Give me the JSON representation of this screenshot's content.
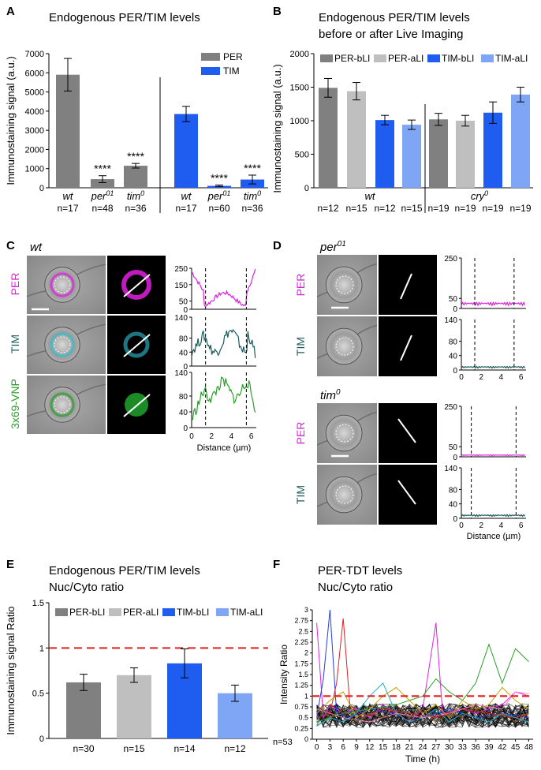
{
  "panels": {
    "A": {
      "label": "A",
      "title": "Endogenous PER/TIM levels"
    },
    "B": {
      "label": "B",
      "title_line1": "Endogenous PER/TIM levels",
      "title_line2": "before or after Live Imaging"
    },
    "C": {
      "label": "C",
      "genotype": "wt",
      "rows": [
        "PER",
        "TIM",
        "3x69-VNP"
      ],
      "profile_yticks": [
        [
          0,
          50,
          100,
          150,
          200,
          250
        ],
        [
          0,
          40,
          80,
          140
        ],
        [
          0,
          40,
          80,
          140
        ]
      ],
      "profile_xticks": [
        "0",
        "2",
        "4",
        "6"
      ],
      "xlabel": "Distance (µm)"
    },
    "D": {
      "label": "D",
      "genotype1": "per",
      "genotype1_sup": "01",
      "genotype2": "tim",
      "genotype2_sup": "0",
      "rows": [
        "PER",
        "TIM"
      ],
      "yticks_per": [
        "0",
        "50",
        "250"
      ],
      "yticks_tim": [
        "0",
        "40",
        "80",
        "140"
      ],
      "xticks": [
        "0",
        "2",
        "4",
        "6"
      ],
      "xlabel": "Distance (µm)"
    },
    "E": {
      "label": "E",
      "title_line1": "Endogenous PER/TIM levels",
      "title_line2": "Nuc/Cyto ratio"
    },
    "F": {
      "label": "F",
      "title_line1": "PER-TDT levels",
      "title_line2": "Nuc/Cyto ratio",
      "n_label": "n=53"
    }
  },
  "colors": {
    "per": "#808080",
    "per_light": "#bfbfbf",
    "tim": "#1f5cf0",
    "tim_light": "#7fa6f5",
    "magenta": "#e020e0",
    "teal": "#1a5a5a",
    "green": "#2aa02a",
    "red": "#e02020"
  },
  "chart_data": [
    {
      "id": "A",
      "type": "bar",
      "ylabel": "Immunostaining signal (a.u.)",
      "ylim": [
        0,
        7000
      ],
      "yticks": [
        0,
        1000,
        2000,
        3000,
        4000,
        5000,
        6000,
        7000
      ],
      "legend": [
        "PER",
        "TIM"
      ],
      "groups": [
        {
          "name": "PER",
          "bars": [
            {
              "genotype": "wt",
              "sup": "",
              "n": "n=17",
              "value": 5900,
              "err": 850,
              "sig": ""
            },
            {
              "genotype": "per",
              "sup": "01",
              "n": "n=48",
              "value": 450,
              "err": 180,
              "sig": "****"
            },
            {
              "genotype": "tim",
              "sup": "0",
              "n": "n=36",
              "value": 1150,
              "err": 120,
              "sig": "****"
            }
          ]
        },
        {
          "name": "TIM",
          "bars": [
            {
              "genotype": "wt",
              "sup": "",
              "n": "n=17",
              "value": 3850,
              "err": 400,
              "sig": ""
            },
            {
              "genotype": "per",
              "sup": "01",
              "n": "n=60",
              "value": 100,
              "err": 40,
              "sig": "****"
            },
            {
              "genotype": "tim",
              "sup": "0",
              "n": "n=36",
              "value": 430,
              "err": 230,
              "sig": "****"
            }
          ]
        }
      ]
    },
    {
      "id": "B",
      "type": "bar",
      "ylabel": "Immunostaining signal (a.u.)",
      "ylim": [
        0,
        2000
      ],
      "yticks": [
        0,
        500,
        1000,
        1500,
        2000
      ],
      "legend": [
        "PER-bLI",
        "PER-aLI",
        "TIM-bLI",
        "TIM-aLI"
      ],
      "groups": [
        {
          "genotype": "wt",
          "sup": "",
          "values": [
            1490,
            1440,
            1010,
            940
          ],
          "errs": [
            140,
            130,
            70,
            70
          ],
          "n": [
            "n=12",
            "n=15",
            "n=12",
            "n=15"
          ]
        },
        {
          "genotype": "cry",
          "sup": "0",
          "values": [
            1020,
            1000,
            1120,
            1390
          ],
          "errs": [
            90,
            80,
            160,
            110
          ],
          "n": [
            "n=19",
            "n=19",
            "n=19",
            "n=19"
          ]
        }
      ]
    },
    {
      "id": "E",
      "type": "bar",
      "ylabel": "Immunostaining signal  Ratio",
      "ylim": [
        0,
        1.5
      ],
      "yticks": [
        "0",
        "0.5",
        "1",
        "1.5"
      ],
      "legend": [
        "PER-bLI",
        "PER-aLI",
        "TIM-bLI",
        "TIM-aLI"
      ],
      "values": [
        0.62,
        0.7,
        0.83,
        0.5
      ],
      "errs": [
        0.09,
        0.08,
        0.16,
        0.09
      ],
      "n": [
        "n=30",
        "n=15",
        "n=14",
        "n=12"
      ],
      "ref_line": 1
    },
    {
      "id": "F",
      "type": "line",
      "ylabel": "Intensity Ratio",
      "xlabel": "Time (h)",
      "xlim": [
        -1,
        49
      ],
      "ylim": [
        0,
        3
      ],
      "xticks": [
        "0",
        "3",
        "6",
        "9",
        "12",
        "15",
        "18",
        "21",
        "24",
        "27",
        "30",
        "33",
        "36",
        "39",
        "42",
        "45",
        "48"
      ],
      "yticks": [
        "0",
        "0.25",
        "0.5",
        "0.75",
        "1",
        "1.25",
        "1.5",
        "1.75",
        "2",
        "2.25",
        "2.5",
        "2.75",
        "3"
      ],
      "ref_line": 1,
      "highlight_series": [
        {
          "color": "#e020e0",
          "points": [
            [
              0,
              2.7
            ],
            [
              1.5,
              0.5
            ],
            [
              3,
              0.8
            ],
            [
              6,
              0.6
            ],
            [
              9,
              0.7
            ],
            [
              12,
              0.5
            ],
            [
              15,
              0.8
            ],
            [
              18,
              0.6
            ],
            [
              21,
              0.4
            ],
            [
              24,
              0.7
            ],
            [
              27,
              2.7
            ],
            [
              28.5,
              0.6
            ],
            [
              33,
              0.7
            ],
            [
              36,
              0.6
            ],
            [
              42,
              0.8
            ],
            [
              45,
              1.1
            ],
            [
              48,
              1.0
            ]
          ]
        },
        {
          "color": "#1f3cf0",
          "points": [
            [
              0,
              0.5
            ],
            [
              1.5,
              1.4
            ],
            [
              3,
              3.0
            ],
            [
              4.5,
              0.6
            ],
            [
              7.5,
              0.5
            ],
            [
              12,
              0.7
            ],
            [
              18,
              0.6
            ],
            [
              24,
              0.5
            ],
            [
              30,
              0.7
            ],
            [
              36,
              0.5
            ],
            [
              42,
              0.6
            ],
            [
              48,
              0.5
            ]
          ]
        },
        {
          "color": "#e02020",
          "points": [
            [
              0,
              0.5
            ],
            [
              3,
              0.6
            ],
            [
              4.5,
              1.3
            ],
            [
              6,
              2.8
            ],
            [
              7.5,
              0.8
            ],
            [
              10.5,
              0.5
            ],
            [
              15,
              0.7
            ],
            [
              21,
              0.6
            ],
            [
              27,
              0.5
            ],
            [
              33,
              0.7
            ],
            [
              39,
              0.6
            ],
            [
              45,
              0.5
            ],
            [
              48,
              0.6
            ]
          ]
        },
        {
          "color": "#2aa02a",
          "points": [
            [
              0,
              0.4
            ],
            [
              6,
              0.6
            ],
            [
              12,
              0.7
            ],
            [
              18,
              0.8
            ],
            [
              24,
              1.0
            ],
            [
              27,
              1.4
            ],
            [
              30,
              1.1
            ],
            [
              33,
              0.9
            ],
            [
              36,
              1.3
            ],
            [
              39,
              2.2
            ],
            [
              42,
              1.3
            ],
            [
              45,
              2.1
            ],
            [
              48,
              1.8
            ]
          ]
        },
        {
          "color": "#c8a000",
          "points": [
            [
              0,
              0.6
            ],
            [
              3,
              0.9
            ],
            [
              6,
              1.1
            ],
            [
              9,
              0.5
            ],
            [
              12,
              0.7
            ],
            [
              15,
              1.0
            ],
            [
              18,
              1.2
            ],
            [
              21,
              0.9
            ],
            [
              24,
              0.6
            ],
            [
              27,
              0.8
            ],
            [
              30,
              0.5
            ],
            [
              33,
              0.9
            ],
            [
              36,
              0.7
            ],
            [
              39,
              0.8
            ],
            [
              42,
              1.2
            ],
            [
              45,
              0.9
            ],
            [
              48,
              0.7
            ]
          ]
        },
        {
          "color": "#20b0d0",
          "points": [
            [
              0,
              0.3
            ],
            [
              3,
              0.5
            ],
            [
              6,
              0.4
            ],
            [
              9,
              0.6
            ],
            [
              12,
              1.0
            ],
            [
              15,
              1.3
            ],
            [
              18,
              0.6
            ],
            [
              21,
              0.4
            ],
            [
              24,
              0.5
            ],
            [
              27,
              0.7
            ],
            [
              30,
              0.4
            ],
            [
              33,
              0.6
            ],
            [
              36,
              0.5
            ],
            [
              39,
              0.4
            ],
            [
              42,
              0.6
            ],
            [
              45,
              0.5
            ],
            [
              48,
              0.4
            ]
          ]
        },
        {
          "color": "#ff80c0",
          "points": [
            [
              0,
              0.7
            ],
            [
              6,
              0.5
            ],
            [
              12,
              0.4
            ],
            [
              18,
              0.6
            ],
            [
              24,
              0.5
            ],
            [
              30,
              0.6
            ],
            [
              36,
              0.8
            ],
            [
              42,
              0.7
            ],
            [
              45,
              1.1
            ],
            [
              48,
              1.05
            ]
          ]
        },
        {
          "color": "#8a5a20",
          "points": [
            [
              0,
              0.8
            ],
            [
              3,
              0.5
            ],
            [
              6,
              0.7
            ],
            [
              9,
              0.4
            ],
            [
              12,
              0.6
            ],
            [
              15,
              0.5
            ],
            [
              18,
              0.8
            ],
            [
              21,
              0.5
            ],
            [
              24,
              0.7
            ],
            [
              27,
              0.4
            ],
            [
              30,
              0.6
            ],
            [
              33,
              0.5
            ],
            [
              36,
              0.8
            ],
            [
              39,
              0.5
            ],
            [
              42,
              0.6
            ],
            [
              45,
              0.4
            ],
            [
              48,
              0.6
            ]
          ]
        }
      ],
      "background_series_count": 45,
      "background_mean": 0.55,
      "background_spread": 0.28
    }
  ]
}
